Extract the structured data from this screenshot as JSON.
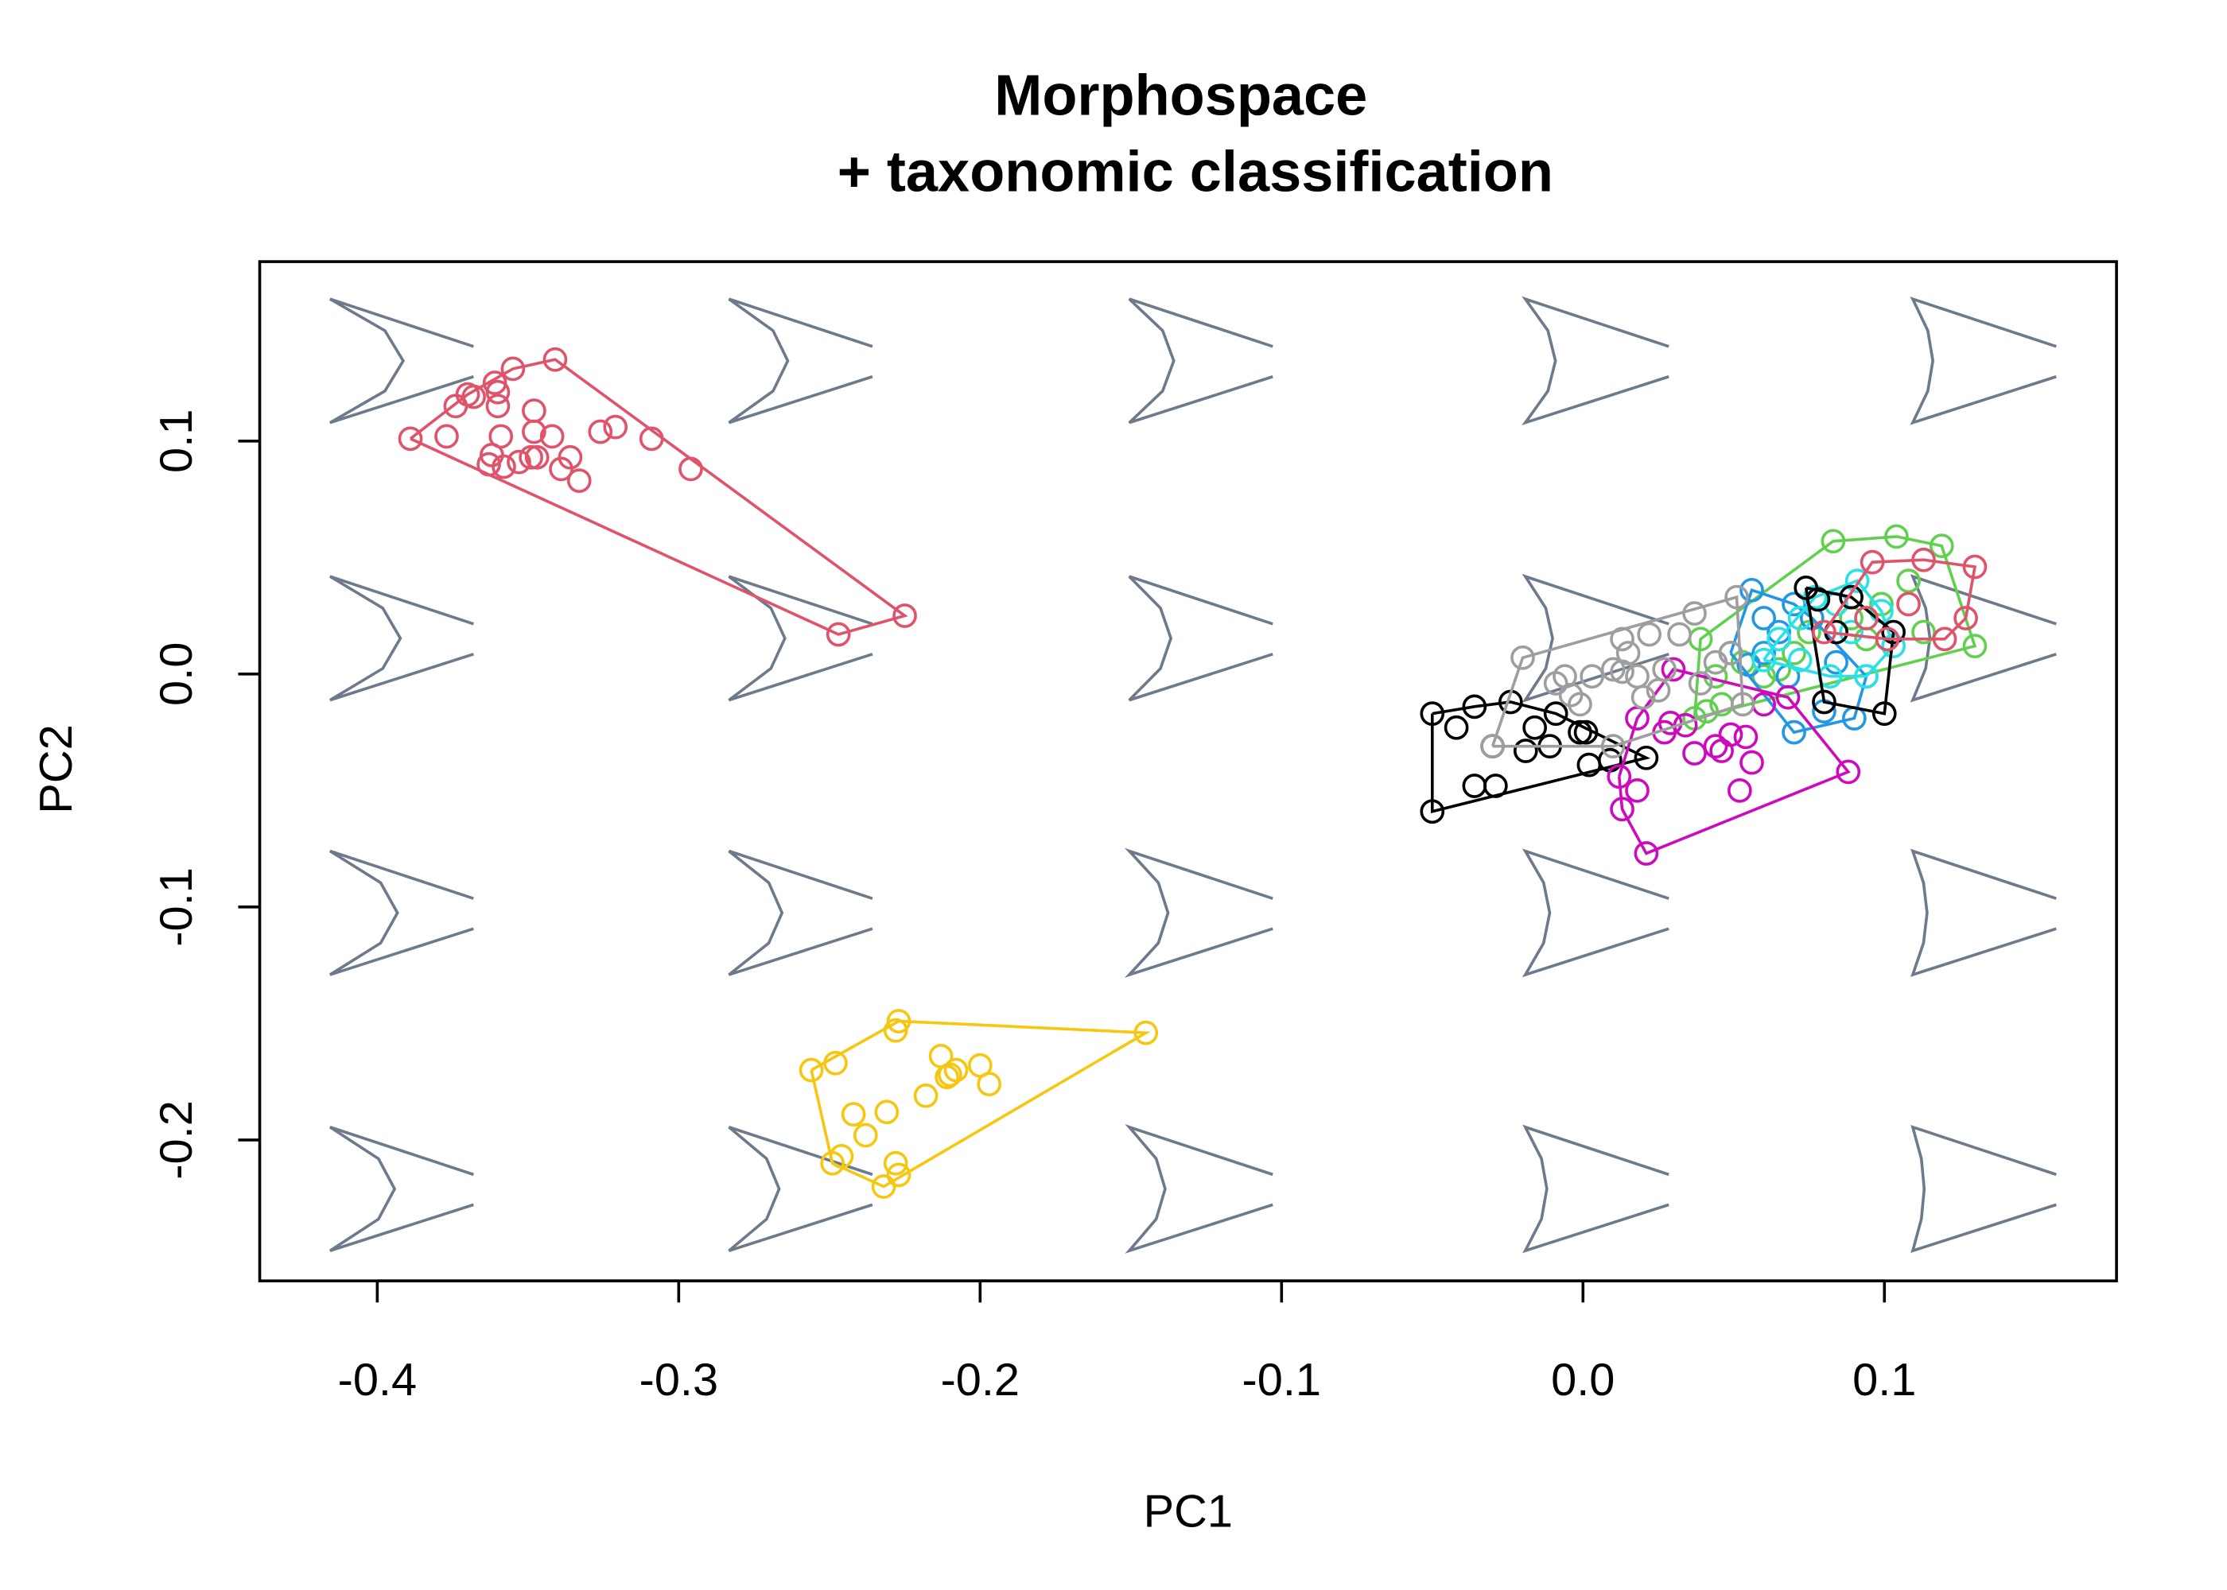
{
  "chart_data": {
    "type": "scatter",
    "title": [
      "Morphospace",
      "+ taxonomic classification"
    ],
    "x_label": "PC1",
    "y_label": "PC2",
    "xlim": [
      -0.439,
      0.177
    ],
    "ylim": [
      -0.2605,
      0.177
    ],
    "xticks": [
      -0.4,
      -0.3,
      -0.2,
      -0.1,
      {
        "value": 0,
        "label": "0.0"
      },
      0.1
    ],
    "yticks": [
      -0.2,
      -0.1,
      {
        "value": 0,
        "label": "0.0"
      },
      0.1
    ],
    "hulls": true,
    "series": [
      {
        "color": "#000000",
        "x": [
          -0.05,
          -0.05,
          -0.042,
          -0.036,
          -0.036,
          -0.029,
          -0.03,
          -0.024,
          -0.019,
          -0.016,
          -0.011,
          -0.009,
          -0.001,
          0.001,
          0.002,
          0.009,
          0.021
        ],
        "y": [
          -0.017,
          -0.059,
          -0.023,
          -0.014,
          -0.048,
          -0.048,
          -0.031,
          -0.012,
          -0.033,
          -0.023,
          -0.031,
          -0.017,
          -0.025,
          -0.025,
          -0.039,
          -0.037,
          -0.036
        ]
      },
      {
        "color": "#DF536B",
        "x": [
          -0.389,
          -0.377,
          -0.374,
          -0.37,
          -0.368,
          -0.363,
          -0.362,
          -0.361,
          -0.36,
          -0.36,
          -0.359,
          -0.358,
          -0.355,
          -0.353,
          -0.349,
          -0.348,
          -0.348,
          -0.347,
          -0.341,
          -0.342,
          -0.339,
          -0.336,
          -0.333,
          -0.326,
          -0.321,
          -0.309,
          -0.296,
          -0.247,
          -0.225
        ],
        "y": [
          0.101,
          0.102,
          0.115,
          0.12,
          0.119,
          0.09,
          0.094,
          0.125,
          0.121,
          0.115,
          0.102,
          0.089,
          0.131,
          0.091,
          0.093,
          0.113,
          0.104,
          0.093,
          0.135,
          0.102,
          0.088,
          0.093,
          0.083,
          0.104,
          0.106,
          0.101,
          0.088,
          0.017,
          0.025
        ]
      },
      {
        "color": "#61D04F",
        "x": [
          0.083,
          0.104,
          0.119,
          0.13,
          0.108,
          0.037,
          0.041,
          0.046,
          0.039,
          0.06,
          0.07,
          0.075,
          0.089,
          0.094,
          0.099,
          0.113,
          0.065,
          0.053,
          0.044
        ],
        "y": [
          0.057,
          0.059,
          0.055,
          0.012,
          0.04,
          -0.019,
          -0.016,
          -0.013,
          0.015,
          -0.001,
          0.009,
          0.018,
          0.024,
          0.015,
          0.03,
          0.018,
          0.002,
          0.005,
          -0.001
        ]
      },
      {
        "color": "#2297E6",
        "x": [
          0.056,
          0.049,
          0.055,
          0.06,
          0.065,
          0.07,
          0.076,
          0.084,
          0.09,
          0.07,
          0.08,
          0.094,
          0.06,
          0.068
        ],
        "y": [
          0.036,
          0.009,
          0.004,
          0.009,
          0.018,
          0.03,
          0.024,
          0.005,
          -0.019,
          -0.025,
          -0.016,
          -0.001,
          0.024,
          -0.001
        ]
      },
      {
        "color": "#28E2E5",
        "x": [
          0.065,
          0.072,
          0.077,
          0.084,
          0.091,
          0.099,
          0.103,
          0.094,
          0.082,
          0.072,
          0.089,
          0.06
        ],
        "y": [
          0.015,
          0.024,
          0.033,
          0.03,
          0.04,
          0.027,
          0.012,
          -0.001,
          -0.001,
          0.006,
          0.018,
          0.006
        ]
      },
      {
        "color": "#CD0BBC",
        "x": [
          0.012,
          0.013,
          0.018,
          0.021,
          0.03,
          0.029,
          0.034,
          0.037,
          0.044,
          0.046,
          0.049,
          0.052,
          0.056,
          0.054,
          0.06,
          0.068,
          0.088,
          0.018,
          0.027
        ],
        "y": [
          -0.044,
          -0.058,
          -0.05,
          -0.077,
          0.002,
          -0.021,
          -0.022,
          -0.034,
          -0.031,
          -0.033,
          -0.026,
          -0.05,
          -0.038,
          -0.027,
          -0.013,
          -0.01,
          -0.042,
          -0.019,
          -0.025
        ]
      },
      {
        "color": "#F5C710",
        "x": [
          -0.256,
          -0.248,
          -0.249,
          -0.246,
          -0.242,
          -0.238,
          -0.231,
          -0.232,
          -0.228,
          -0.227,
          -0.218,
          -0.213,
          -0.211,
          -0.21,
          -0.208,
          -0.2,
          -0.197,
          -0.145,
          -0.228,
          -0.227
        ],
        "y": [
          -0.17,
          -0.167,
          -0.21,
          -0.207,
          -0.189,
          -0.198,
          -0.188,
          -0.22,
          -0.21,
          -0.149,
          -0.181,
          -0.164,
          -0.173,
          -0.172,
          -0.17,
          -0.168,
          -0.176,
          -0.154,
          -0.153,
          -0.215
        ]
      },
      {
        "color": "#9E9E9E",
        "x": [
          -0.02,
          -0.009,
          -0.004,
          -0.001,
          0.003,
          0.01,
          0.013,
          0.015,
          0.018,
          0.022,
          0.025,
          0.027,
          0.032,
          0.037,
          0.039,
          0.044,
          0.049,
          0.051,
          0.053,
          0.01,
          -0.03,
          -0.006,
          0.013,
          0.02
        ],
        "y": [
          0.007,
          -0.004,
          -0.009,
          -0.013,
          -0.001,
          0.002,
          0.001,
          0.009,
          -0.001,
          0.017,
          -0.007,
          0.002,
          0.017,
          0.026,
          -0.004,
          0.005,
          0.009,
          0.033,
          -0.013,
          -0.031,
          -0.031,
          -0.001,
          0.015,
          -0.01
        ]
      },
      {
        "color": "#000000",
        "x": [
          0.1,
          0.08,
          0.074,
          0.089,
          0.103,
          0.078,
          0.084
        ],
        "y": [
          -0.017,
          -0.012,
          0.037,
          0.033,
          0.018,
          0.032,
          0.018
        ]
      },
      {
        "color": "#DF536B",
        "x": [
          0.096,
          0.113,
          0.13,
          0.127,
          0.12,
          0.108,
          0.094,
          0.08,
          0.101
        ],
        "y": [
          0.048,
          0.049,
          0.046,
          0.024,
          0.015,
          0.03,
          0.024,
          0.018,
          0.015
        ]
      }
    ]
  }
}
